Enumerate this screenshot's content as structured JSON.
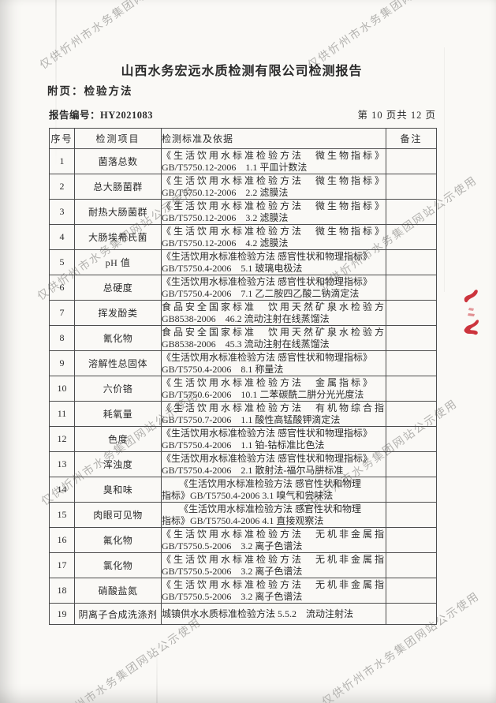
{
  "document": {
    "title": "山西水务宏远水质检测有限公司检测报告",
    "subtitle": "附页：检验方法",
    "report_no_label": "报告编号：",
    "report_no": "HY2021083",
    "page_indicator": "第 10 页共 12 页"
  },
  "table": {
    "headers": {
      "seq": "序号",
      "item": "检测项目",
      "standard": "检测标准及依据",
      "remark": "备注"
    },
    "rows": [
      {
        "no": "1",
        "item": "菌落总数",
        "lines": [
          "《生活饮用水标准检验方法　微生物指标》",
          "GB/T5750.12-2006　1.1 平皿计数法"
        ],
        "line1_style": "spread",
        "remark": ""
      },
      {
        "no": "2",
        "item": "总大肠菌群",
        "lines": [
          "《生活饮用水标准检验方法　微生物指标》",
          "GB/T5750.12-2006　2.2 滤膜法"
        ],
        "line1_style": "spread",
        "remark": ""
      },
      {
        "no": "3",
        "item": "耐热大肠菌群",
        "lines": [
          "《生活饮用水标准检验方法　微生物指标》",
          "GB/T5750.12-2006　3.2 滤膜法"
        ],
        "line1_style": "spread",
        "remark": ""
      },
      {
        "no": "4",
        "item": "大肠埃希氏菌",
        "lines": [
          "《生活饮用水标准检验方法　微生物指标》",
          "GB/T5750.12-2006　4.2 滤膜法"
        ],
        "line1_style": "spread",
        "remark": ""
      },
      {
        "no": "5",
        "item": "pH 值",
        "lines": [
          "《生活饮用水标准检验方法 感官性状和物理指标》",
          "GB/T5750.4-2006　5.1 玻璃电极法"
        ],
        "line1_style": "normal",
        "remark": ""
      },
      {
        "no": "6",
        "item": "总硬度",
        "lines": [
          "《生活饮用水标准检验方法 感官性状和物理指标》",
          "GB/T5750.4-2006　7.1 乙二胺四乙酸二钠滴定法"
        ],
        "line1_style": "normal",
        "remark": ""
      },
      {
        "no": "7",
        "item": "挥发酚类",
        "lines": [
          "食品安全国家标准　饮用天然矿泉水检验方法",
          "GB8538-2006　46.2 流动注射在线蒸馏法"
        ],
        "line1_style": "spread",
        "remark": ""
      },
      {
        "no": "8",
        "item": "氰化物",
        "lines": [
          "食品安全国家标准　饮用天然矿泉水检验方法",
          "GB8538-2006　45.3 流动注射在线蒸馏法"
        ],
        "line1_style": "spread",
        "remark": ""
      },
      {
        "no": "9",
        "item": "溶解性总固体",
        "lines": [
          "《生活饮用水标准检验方法 感官性状和物理指标》",
          "GB/T5750.4-2006　8.1 称量法"
        ],
        "line1_style": "normal",
        "remark": ""
      },
      {
        "no": "10",
        "item": "六价铬",
        "lines": [
          "《生活饮用水标准检验方法　金属指标》",
          "GB/T5750.6-2006　10.1 二苯碳酰二肼分光光度法"
        ],
        "line1_style": "spread",
        "remark": ""
      },
      {
        "no": "11",
        "item": "耗氧量",
        "lines": [
          "《生活饮用水标准检验方法　有机物综合指标》",
          "GB/T5750.7-2006　1.1 酸性高锰酸钾滴定法"
        ],
        "line1_style": "spread",
        "remark": ""
      },
      {
        "no": "12",
        "item": "色度",
        "lines": [
          "《生活饮用水标准检验方法 感官性状和物理指标》",
          "GB/T5750.4-2006　1.1 铂-钴标准比色法"
        ],
        "line1_style": "normal",
        "remark": ""
      },
      {
        "no": "13",
        "item": "浑浊度",
        "lines": [
          "《生活饮用水标准检验方法 感官性状和物理指标》",
          "GB/T5750.4-2006　2.1 散射法-福尔马肼标准"
        ],
        "line1_style": "normal",
        "remark": ""
      },
      {
        "no": "14",
        "item": "臭和味",
        "lines": [
          "《生活饮用水标准检验方法 感官性状和物理",
          "指标》GB/T5750.4-2006 3.1 嗅气和尝味法"
        ],
        "line1_style": "indent",
        "remark": ""
      },
      {
        "no": "15",
        "item": "肉眼可见物",
        "lines": [
          "《生活饮用水标准检验方法 感官性状和物理",
          "指标》GB/T5750.4-2006 4.1 直接观察法"
        ],
        "line1_style": "indent",
        "remark": ""
      },
      {
        "no": "16",
        "item": "氟化物",
        "lines": [
          "《生活饮用水标准检验方法　无机非金属指标》",
          "GB/T5750.5-2006　3.2 离子色谱法"
        ],
        "line1_style": "spread",
        "remark": ""
      },
      {
        "no": "17",
        "item": "氯化物",
        "lines": [
          "《生活饮用水标准检验方法　无机非金属指标》",
          "GB/T5750.5-2006　3.2 离子色谱法"
        ],
        "line1_style": "spread",
        "remark": ""
      },
      {
        "no": "18",
        "item": "硝酸盐氮",
        "lines": [
          "《生活饮用水标准检验方法　无机非金属指标》",
          "GB/T5750.5-2006　3.2 离子色谱法"
        ],
        "line1_style": "spread",
        "remark": ""
      },
      {
        "no": "19",
        "item": "阴离子合成洗涤剂",
        "lines": [
          "城镇供水水质标准检验方法 5.5.2　流动注射法"
        ],
        "line1_style": "normal",
        "remark": ""
      }
    ]
  },
  "watermark": {
    "text": "仅供忻州市水务集团网站公示使用",
    "color": "#aeadaa"
  },
  "stamp": {
    "color": "#c8232c"
  }
}
